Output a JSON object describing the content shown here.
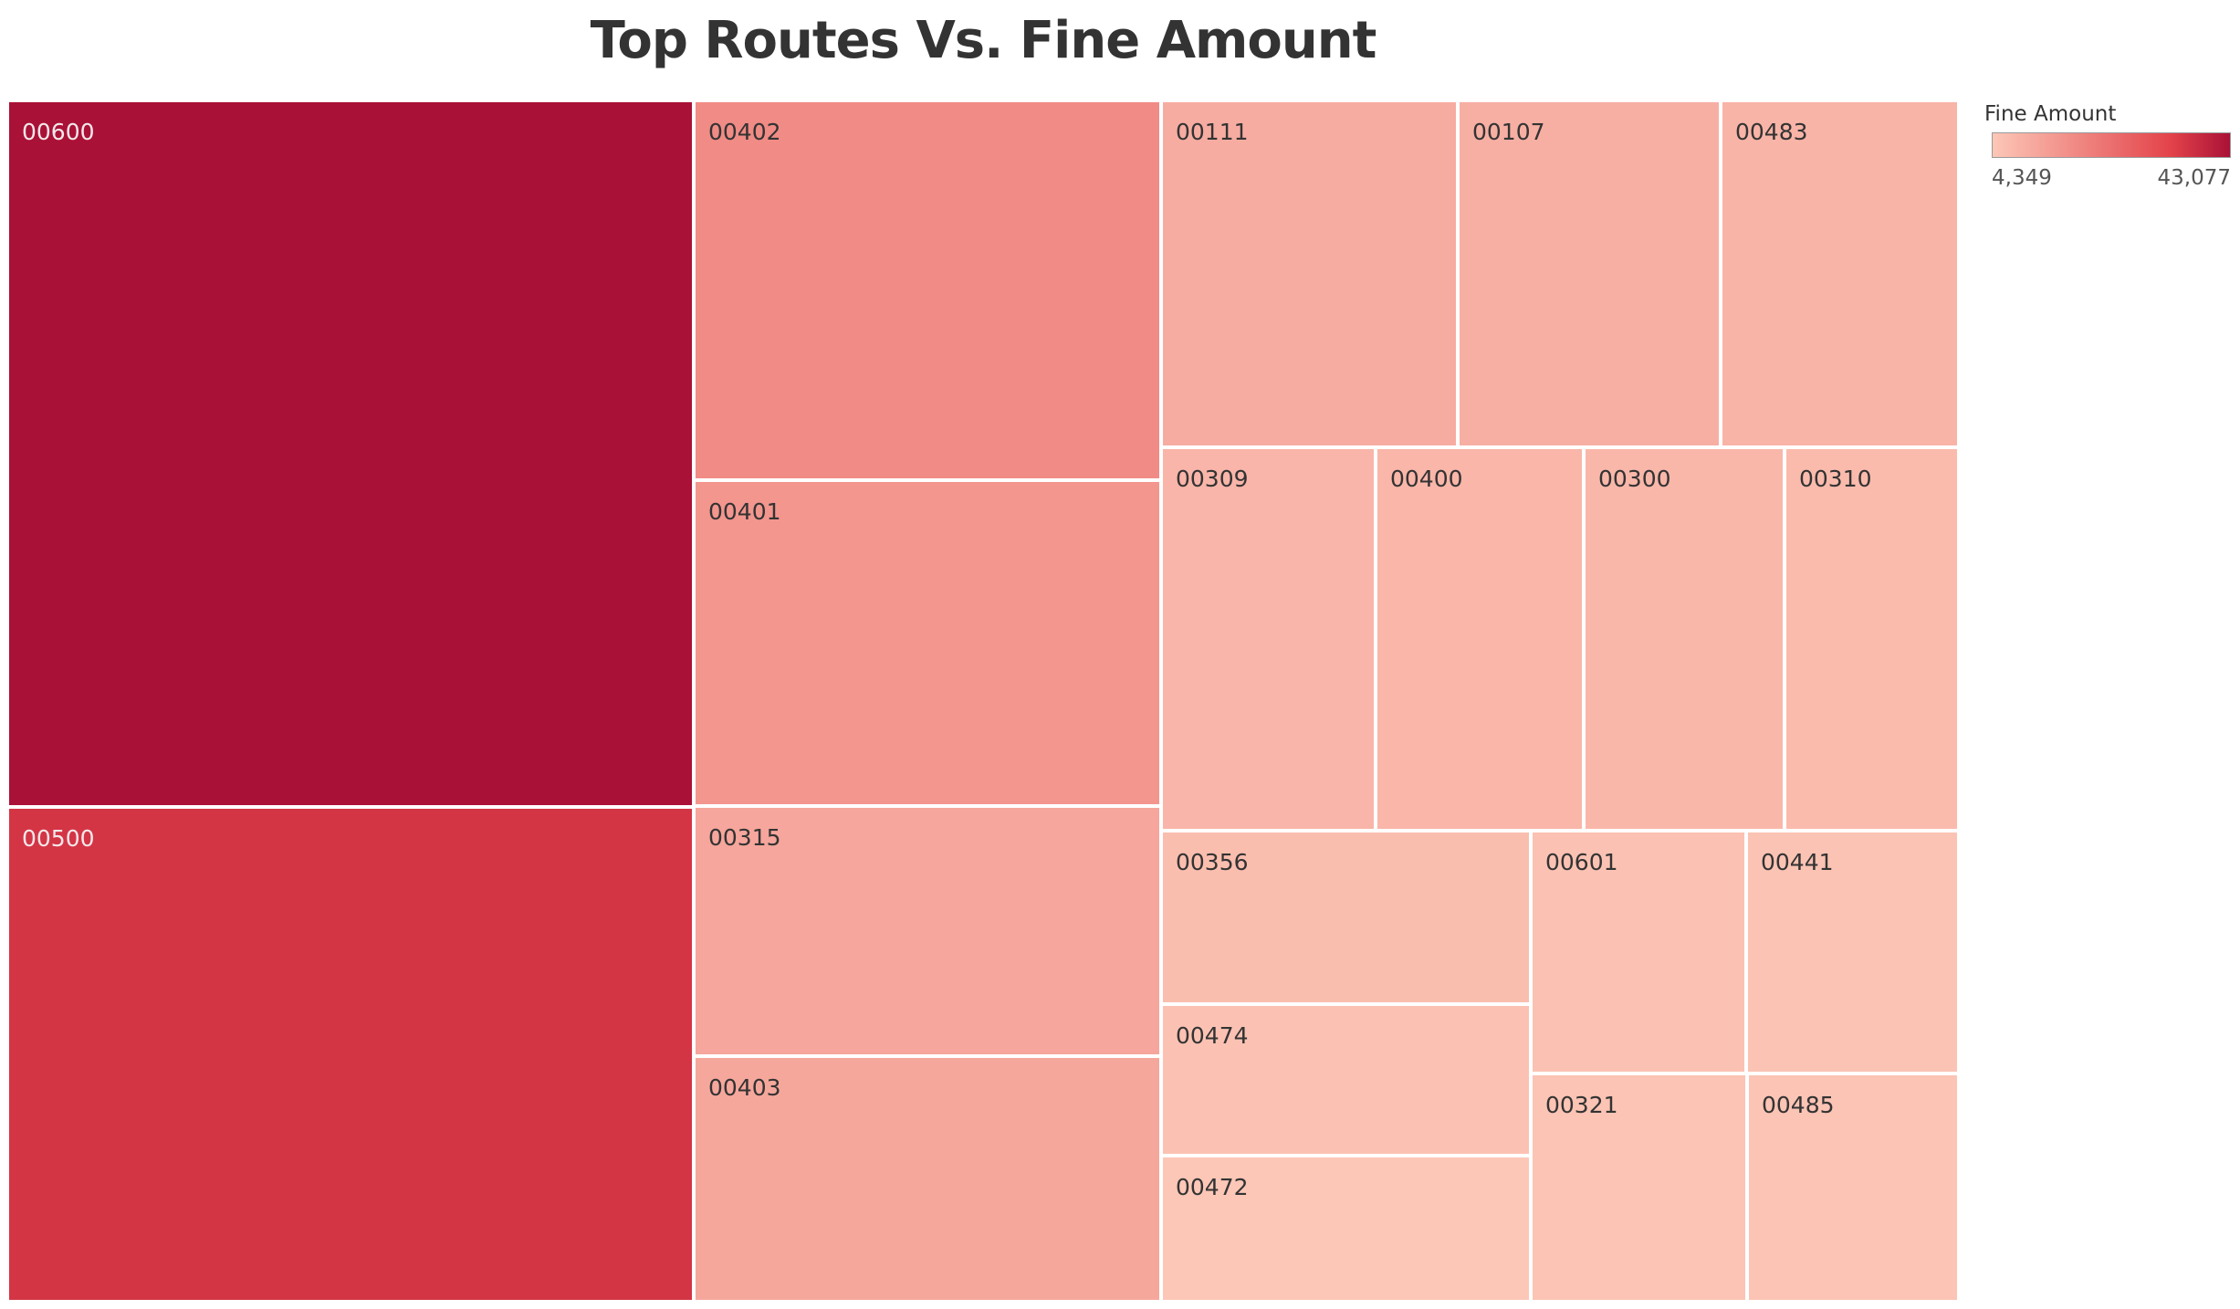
{
  "chart_data": {
    "type": "treemap",
    "title": "Top Routes Vs. Fine Amount",
    "legend": {
      "title": "Fine Amount",
      "min_label": "4,349",
      "max_label": "43,077",
      "min": 4349,
      "max": 43077,
      "position": "top-right"
    },
    "colors": {
      "low": "#fcc7b7",
      "mid": "#e3434a",
      "high": "#aa1137"
    },
    "items": [
      {
        "label": "00600",
        "value": 43077
      },
      {
        "label": "00500",
        "value": 36100
      },
      {
        "label": "00402",
        "value": 17600
      },
      {
        "label": "00401",
        "value": 15200
      },
      {
        "label": "00315",
        "value": 11600
      },
      {
        "label": "00403",
        "value": 11500
      },
      {
        "label": "00111",
        "value": 10300
      },
      {
        "label": "00107",
        "value": 9700
      },
      {
        "label": "00483",
        "value": 8500
      },
      {
        "label": "00309",
        "value": 8200
      },
      {
        "label": "00400",
        "value": 8100
      },
      {
        "label": "00300",
        "value": 7800
      },
      {
        "label": "00310",
        "value": 6900
      },
      {
        "label": "00356",
        "value": 6400
      },
      {
        "label": "00601",
        "value": 5400
      },
      {
        "label": "00441",
        "value": 5300
      },
      {
        "label": "00474",
        "value": 5500
      },
      {
        "label": "00321",
        "value": 5100
      },
      {
        "label": "00485",
        "value": 5000
      },
      {
        "label": "00472",
        "value": 4349
      }
    ]
  }
}
